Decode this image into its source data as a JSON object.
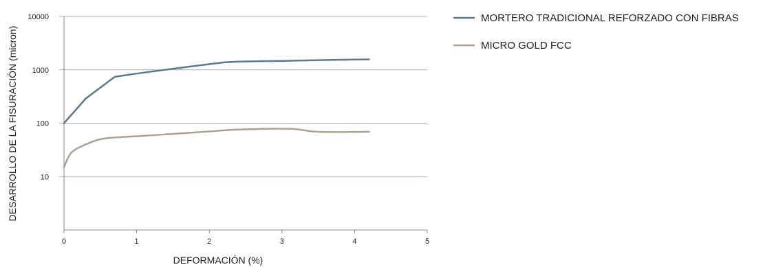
{
  "chart_data": {
    "type": "line",
    "xlabel": "DEFORMACIÓN  (%)",
    "ylabel": "DESARROLLO DE LA FISURACIÓN (micron)",
    "xlim": [
      0,
      5
    ],
    "ylim": [
      1,
      10000
    ],
    "yscale": "log",
    "x_ticks": [
      "0",
      "1",
      "2",
      "3",
      "4",
      "5"
    ],
    "y_ticks": [
      "10",
      "100",
      "1000",
      "10000"
    ],
    "grid": "horizontal",
    "legend_position": "top-right",
    "series": [
      {
        "name": "MORTERO TRADICIONAL REFORZADO CON FIBRAS",
        "color": "#5a7a8c",
        "points": [
          [
            0,
            100
          ],
          [
            0.3,
            290
          ],
          [
            0.7,
            740
          ],
          [
            1.0,
            850
          ],
          [
            1.5,
            1050
          ],
          [
            2.2,
            1380
          ],
          [
            2.4,
            1430
          ],
          [
            3.0,
            1470
          ],
          [
            3.5,
            1520
          ],
          [
            4.2,
            1570
          ]
        ]
      },
      {
        "name": "MICRO GOLD FCC",
        "color": "#aba291",
        "points": [
          [
            0,
            15
          ],
          [
            0.1,
            28
          ],
          [
            0.3,
            40
          ],
          [
            0.5,
            50
          ],
          [
            0.7,
            54
          ],
          [
            1.0,
            57
          ],
          [
            1.5,
            63
          ],
          [
            2.0,
            70
          ],
          [
            2.4,
            76
          ],
          [
            3.1,
            79
          ],
          [
            3.5,
            69
          ],
          [
            4.2,
            69
          ]
        ]
      }
    ]
  }
}
